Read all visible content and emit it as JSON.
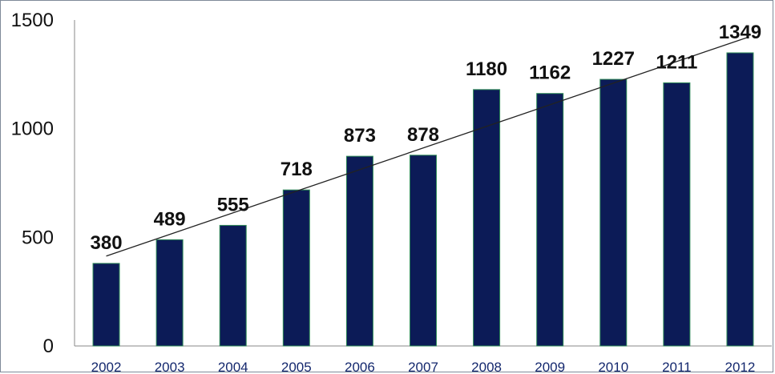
{
  "chart_data": {
    "type": "bar",
    "categories": [
      "2002",
      "2003",
      "2004",
      "2005",
      "2006",
      "2007",
      "2008",
      "2009",
      "2010",
      "2011",
      "2012"
    ],
    "values": [
      380,
      489,
      555,
      718,
      873,
      878,
      1180,
      1162,
      1227,
      1211,
      1349
    ],
    "ylim": [
      0,
      1500
    ],
    "yticks": [
      "0",
      "500",
      "1000",
      "1500"
    ],
    "grid": false,
    "legend": "none",
    "trendline": "linear",
    "data_labels": true,
    "colors": {
      "bar": "#0c1b57",
      "bar_edge": "#2e8b57",
      "trendline": "#222222",
      "frame": "#7f8a99"
    }
  }
}
